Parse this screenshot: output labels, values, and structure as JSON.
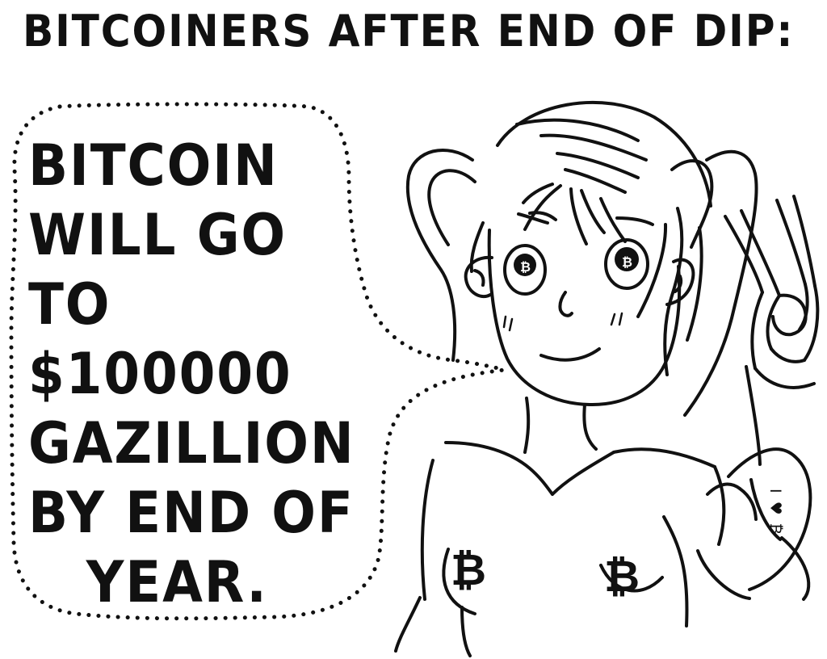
{
  "title": "BITCOINERS AFTER END OF DIP:",
  "speech_bubble": {
    "lines": [
      "BITCOIN",
      "WILL GO",
      "TO",
      "$100000",
      "GAZILLION",
      "BY END OF",
      "YEAR."
    ]
  },
  "tattoo_text": "I ♥ ₿",
  "icons": {
    "left_eye": "bitcoin-symbol-icon",
    "right_eye": "bitcoin-symbol-icon",
    "left_shirt": "bitcoin-symbol-icon",
    "right_shirt": "bitcoin-symbol-icon",
    "hand_gesture": "peace-sign-icon"
  }
}
